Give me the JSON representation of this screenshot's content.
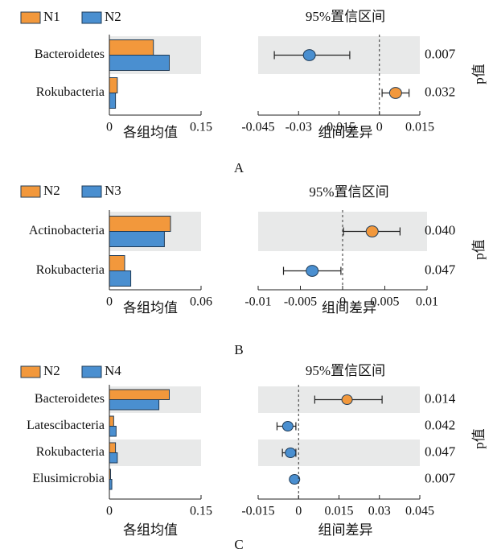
{
  "colors": {
    "orange": "#F2983C",
    "blue": "#4A8FD0",
    "shade": "#E8E9E9",
    "axis": "#222222"
  },
  "chart_data": [
    {
      "type": "bar",
      "panel_label": "A",
      "legend": [
        "N1",
        "N2"
      ],
      "categories": [
        "Bacteroidetes",
        "Rokubacteria"
      ],
      "series": [
        {
          "name": "N1",
          "values": [
            0.072,
            0.013
          ]
        },
        {
          "name": "N2",
          "values": [
            0.098,
            0.01
          ]
        }
      ],
      "bar_xlim": [
        0,
        0.15
      ],
      "bar_ticks": [
        "0",
        "0.15"
      ],
      "bar_xlabel": "各组均值",
      "diff_title": "95%置信区间",
      "diff_xlim": [
        -0.045,
        0.015
      ],
      "diff_ticks": [
        "-0.045",
        "-0.03",
        "-0.015",
        "0",
        "0.015"
      ],
      "diff_xlabel": "组间差异",
      "diffs": [
        {
          "est": -0.026,
          "lo": -0.039,
          "hi": -0.011,
          "group": "N2"
        },
        {
          "est": 0.006,
          "lo": 0.001,
          "hi": 0.011,
          "group": "N1"
        }
      ],
      "p_values": [
        "0.007",
        "0.032"
      ],
      "p_label": "p值"
    },
    {
      "type": "bar",
      "panel_label": "B",
      "legend": [
        "N2",
        "N3"
      ],
      "categories": [
        "Actinobacteria",
        "Rokubacteria"
      ],
      "series": [
        {
          "name": "N2",
          "values": [
            0.04,
            0.01
          ]
        },
        {
          "name": "N3",
          "values": [
            0.036,
            0.014
          ]
        }
      ],
      "bar_xlim": [
        0,
        0.06
      ],
      "bar_ticks": [
        "0",
        "0.06"
      ],
      "bar_xlabel": "各组均值",
      "diff_title": "95%置信区间",
      "diff_xlim": [
        -0.01,
        0.01
      ],
      "diff_ticks": [
        "-0.01",
        "-0.005",
        "0",
        "0.005",
        "0.01"
      ],
      "diff_xlabel": "组间差异",
      "diffs": [
        {
          "est": 0.0035,
          "lo": 0.0001,
          "hi": 0.0068,
          "group": "N2"
        },
        {
          "est": -0.0036,
          "lo": -0.007,
          "hi": -0.0002,
          "group": "N3"
        }
      ],
      "p_values": [
        "0.040",
        "0.047"
      ],
      "p_label": "p值"
    },
    {
      "type": "bar",
      "panel_label": "C",
      "legend": [
        "N2",
        "N4"
      ],
      "categories": [
        "Bacteroidetes",
        "Latescibacteria",
        "Rokubacteria",
        "Elusimicrobia"
      ],
      "series": [
        {
          "name": "N2",
          "values": [
            0.098,
            0.007,
            0.01,
            0.002
          ]
        },
        {
          "name": "N4",
          "values": [
            0.081,
            0.011,
            0.013,
            0.004
          ]
        }
      ],
      "bar_xlim": [
        0,
        0.15
      ],
      "bar_ticks": [
        "0",
        "0.15"
      ],
      "bar_xlabel": "各组均值",
      "diff_title": "95%置信区间",
      "diff_xlim": [
        -0.015,
        0.045
      ],
      "diff_ticks": [
        "-0.015",
        "0",
        "0.015",
        "0.03",
        "0.045"
      ],
      "diff_xlabel": "组间差异",
      "diffs": [
        {
          "est": 0.018,
          "lo": 0.006,
          "hi": 0.031,
          "group": "N2"
        },
        {
          "est": -0.004,
          "lo": -0.008,
          "hi": -0.001,
          "group": "N4"
        },
        {
          "est": -0.003,
          "lo": -0.006,
          "hi": -0.001,
          "group": "N4"
        },
        {
          "est": -0.0015,
          "lo": -0.002,
          "hi": -0.001,
          "group": "N4"
        }
      ],
      "p_values": [
        "0.014",
        "0.042",
        "0.047",
        "0.007"
      ],
      "p_label": "p值"
    }
  ]
}
